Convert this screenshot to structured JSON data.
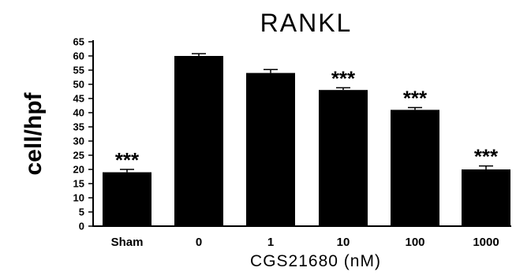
{
  "chart_data": {
    "type": "bar",
    "title": "RANKL",
    "xlabel": "CGS21680 (nM)",
    "ylabel": "cell/hpf",
    "categories": [
      "Sham",
      "0",
      "1",
      "10",
      "100",
      "1000"
    ],
    "values": [
      19,
      60,
      54,
      48,
      41,
      20
    ],
    "errors": [
      1,
      0.8,
      1.2,
      0.8,
      0.8,
      1.2
    ],
    "significance": [
      "***",
      "",
      "",
      "***",
      "***",
      "***"
    ],
    "ylim": [
      0,
      65
    ],
    "yticks": [
      "0",
      "5",
      "10",
      "15",
      "20",
      "25",
      "30",
      "35",
      "40",
      "45",
      "50",
      "55",
      "60",
      "65"
    ],
    "bar_color": "#000000",
    "grid": false,
    "legend": "none"
  }
}
